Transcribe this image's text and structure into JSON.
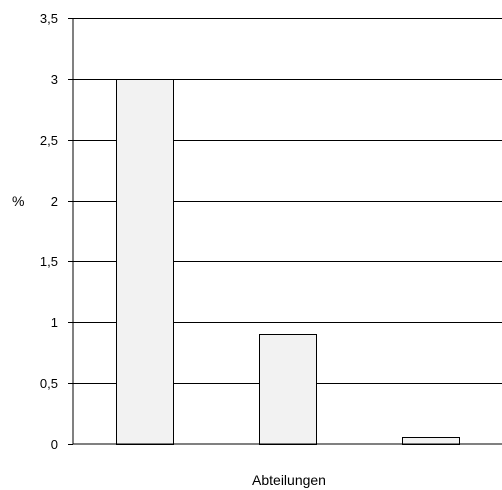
{
  "chart_data": {
    "type": "bar",
    "categories": [
      "",
      "",
      ""
    ],
    "values": [
      3.0,
      0.9,
      0.06
    ],
    "title": "",
    "xlabel": "Abteilungen",
    "ylabel": "%",
    "ylim": [
      0,
      3.5
    ],
    "yticks": [
      0,
      0.5,
      1,
      1.5,
      2,
      2.5,
      3,
      3.5
    ],
    "ytick_labels": [
      "0",
      "0,5",
      "1",
      "1,5",
      "2",
      "2,5",
      "3",
      "3,5"
    ],
    "grid": "horizontal",
    "legend": "none",
    "colors": {
      "bar_fill": "#f2f2f2",
      "bar_stroke": "#000000",
      "grid": "#000000"
    }
  }
}
